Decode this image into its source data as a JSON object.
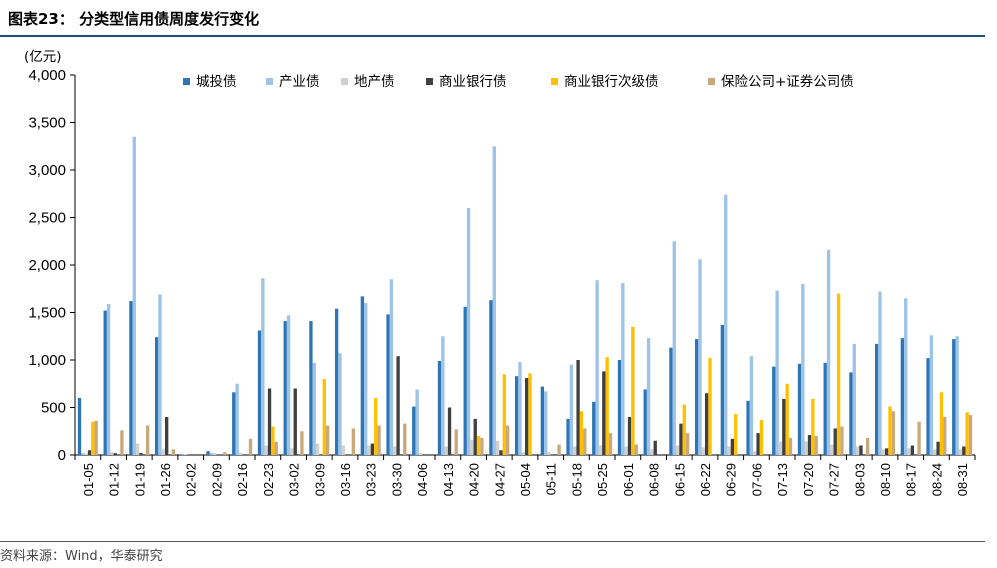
{
  "figure": {
    "title": "图表23： 分类型信用债周度发行变化",
    "source": "资料来源：Wind，华泰研究"
  },
  "chart_data": {
    "type": "bar",
    "ylabel": "(亿元)",
    "ylim": [
      0,
      4000
    ],
    "yticks": [
      "0",
      "500",
      "1,000",
      "1,500",
      "2,000",
      "2,500",
      "3,000",
      "3,500",
      "4,000"
    ],
    "ytick_values": [
      0,
      500,
      1000,
      1500,
      2000,
      2500,
      3000,
      3500,
      4000
    ],
    "legend_position": "top",
    "grid": false,
    "categories": [
      "01-05",
      "01-12",
      "01-19",
      "01-26",
      "02-02",
      "02-09",
      "02-16",
      "02-23",
      "03-02",
      "03-09",
      "03-16",
      "03-23",
      "03-30",
      "04-06",
      "04-13",
      "04-20",
      "04-27",
      "05-04",
      "05-11",
      "05-18",
      "05-25",
      "06-01",
      "06-08",
      "06-15",
      "06-22",
      "06-29",
      "07-06",
      "07-13",
      "07-20",
      "07-27",
      "08-03",
      "08-10",
      "08-17",
      "08-24",
      "08-31"
    ],
    "series": [
      {
        "name": "城投债",
        "color": "#2e75b6",
        "values": [
          600,
          1520,
          1620,
          1240,
          5,
          40,
          660,
          1310,
          1410,
          1410,
          1540,
          1670,
          1480,
          510,
          990,
          1560,
          1630,
          830,
          720,
          380,
          560,
          1000,
          690,
          1130,
          1220,
          1370,
          570,
          930,
          960,
          970,
          870,
          1170,
          1230,
          1020,
          1220
        ]
      },
      {
        "name": "产业债",
        "color": "#9dc3e6",
        "values": [
          20,
          1590,
          3350,
          1690,
          5,
          20,
          750,
          1860,
          1470,
          970,
          1070,
          1600,
          1850,
          690,
          1250,
          2600,
          3250,
          980,
          670,
          950,
          1840,
          1810,
          1230,
          2250,
          2060,
          2740,
          1040,
          1730,
          1800,
          2160,
          1170,
          1720,
          1650,
          1260,
          1250
        ]
      },
      {
        "name": "地产债",
        "color": "#d0d0d0",
        "values": [
          10,
          30,
          120,
          60,
          0,
          20,
          20,
          100,
          70,
          120,
          100,
          100,
          90,
          20,
          90,
          160,
          150,
          30,
          30,
          90,
          100,
          90,
          60,
          100,
          80,
          90,
          40,
          140,
          140,
          110,
          90,
          60,
          70,
          60,
          60
        ]
      },
      {
        "name": "商业银行债",
        "color": "#404040",
        "values": [
          50,
          20,
          20,
          400,
          0,
          0,
          0,
          700,
          700,
          0,
          0,
          120,
          1040,
          0,
          500,
          380,
          50,
          810,
          0,
          1000,
          880,
          400,
          150,
          330,
          650,
          170,
          230,
          590,
          210,
          280,
          100,
          70,
          100,
          140,
          90
        ]
      },
      {
        "name": "商业银行次级债",
        "color": "#ffc000",
        "values": [
          350,
          0,
          0,
          0,
          0,
          0,
          0,
          300,
          0,
          800,
          0,
          600,
          0,
          0,
          0,
          200,
          850,
          860,
          0,
          460,
          1030,
          1350,
          0,
          530,
          1020,
          430,
          370,
          750,
          590,
          1700,
          0,
          510,
          0,
          660,
          450
        ]
      },
      {
        "name": "保险公司+证券公司债",
        "color": "#c9a87c",
        "values": [
          360,
          260,
          310,
          60,
          0,
          30,
          170,
          140,
          250,
          310,
          280,
          310,
          330,
          0,
          270,
          180,
          310,
          0,
          110,
          280,
          230,
          110,
          0,
          230,
          0,
          0,
          0,
          180,
          200,
          300,
          180,
          460,
          350,
          400,
          420
        ]
      }
    ]
  }
}
